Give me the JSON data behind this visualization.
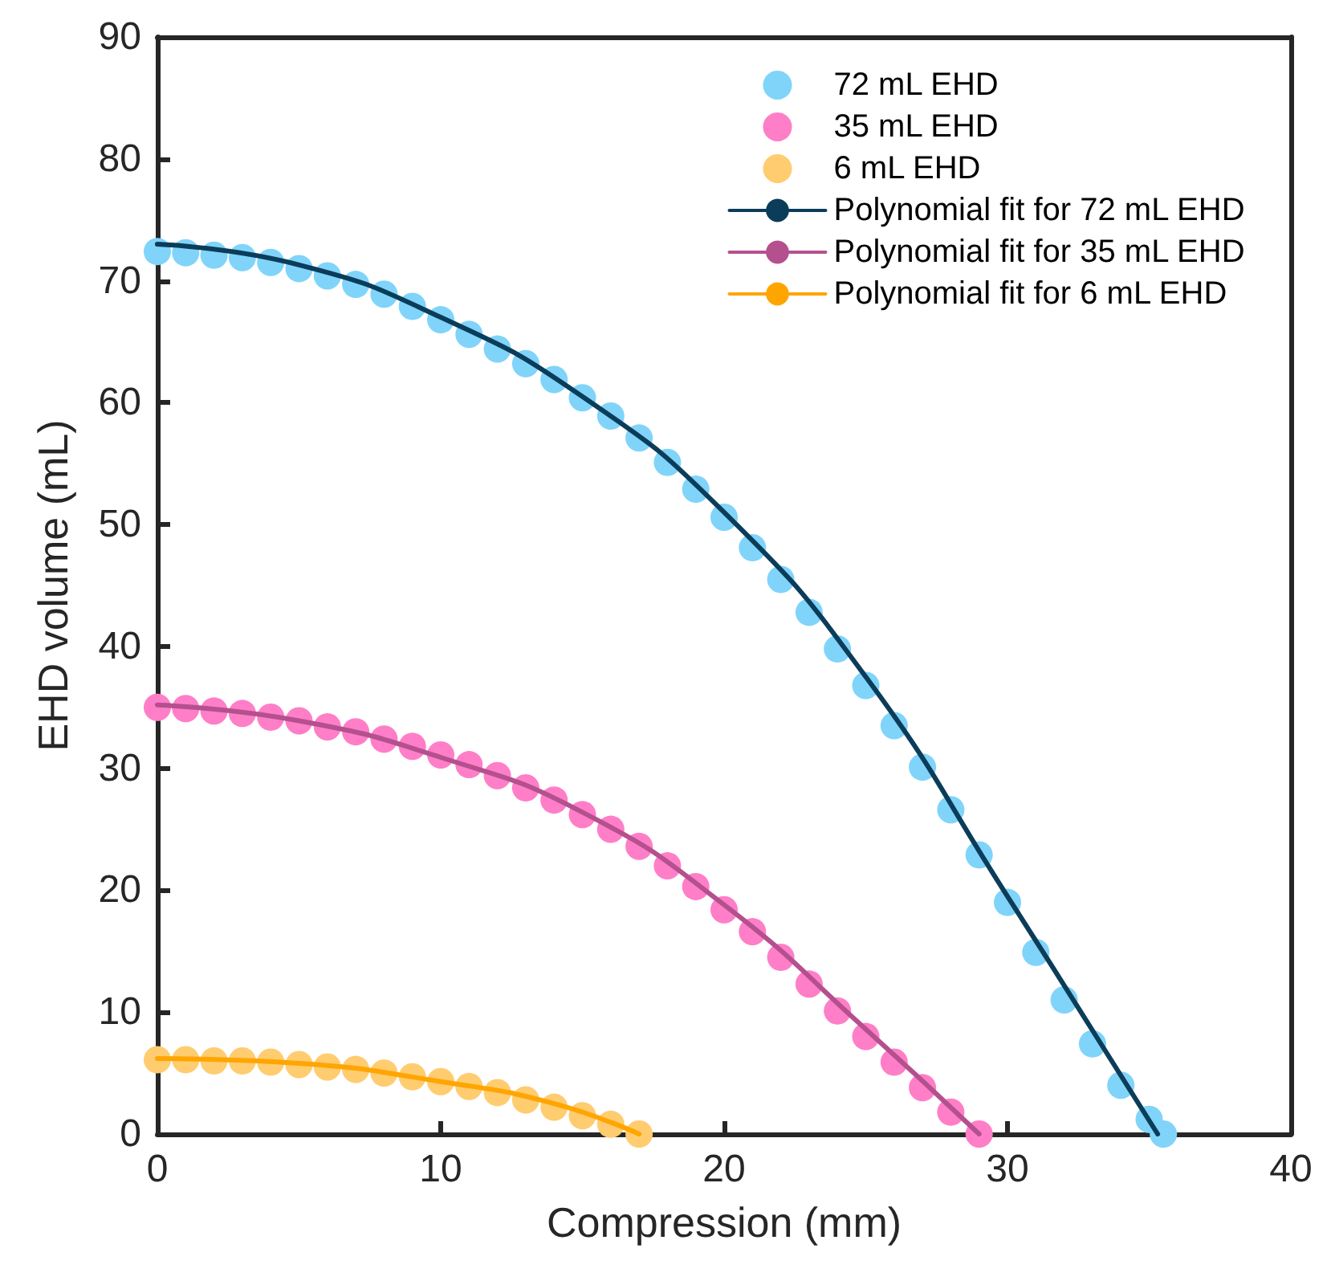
{
  "chart_data": {
    "type": "scatter",
    "xlabel": "Compression (mm)",
    "ylabel": "EHD volume (mL)",
    "xlim": [
      0,
      40
    ],
    "ylim": [
      0,
      90
    ],
    "xticks": [
      0,
      10,
      20,
      30,
      40
    ],
    "yticks": [
      0,
      10,
      20,
      30,
      40,
      50,
      60,
      70,
      80,
      90
    ],
    "grid": false,
    "legend": "top right",
    "marker": "circle",
    "series": [
      {
        "name": "72 mL EHD",
        "color": "#80d4fa",
        "x": [
          0,
          1,
          2,
          3,
          4,
          5,
          6,
          7,
          8,
          9,
          10,
          11,
          12,
          13,
          14,
          15,
          16,
          17,
          18,
          19,
          20,
          21,
          22,
          23,
          24,
          25,
          26,
          27,
          28,
          29,
          30,
          31,
          32,
          33,
          34,
          35,
          35.5
        ],
        "values": [
          72.4,
          72.3,
          72.1,
          71.9,
          71.5,
          71.0,
          70.4,
          69.7,
          68.9,
          67.9,
          66.8,
          65.6,
          64.4,
          63.2,
          61.9,
          60.4,
          58.9,
          57.1,
          55.1,
          52.9,
          50.6,
          48.1,
          45.5,
          42.8,
          39.8,
          36.8,
          33.5,
          30.1,
          26.6,
          22.9,
          19.0,
          14.9,
          11.0,
          7.4,
          4.0,
          1.2,
          0
        ]
      },
      {
        "name": "35 mL EHD",
        "color": "#ff7ec8",
        "x": [
          0,
          1,
          2,
          3,
          4,
          5,
          6,
          7,
          8,
          9,
          10,
          11,
          12,
          13,
          14,
          15,
          16,
          17,
          18,
          19,
          20,
          21,
          22,
          23,
          24,
          25,
          26,
          27,
          28,
          29
        ],
        "values": [
          35.0,
          34.9,
          34.7,
          34.5,
          34.2,
          33.9,
          33.4,
          33.0,
          32.4,
          31.8,
          31.1,
          30.3,
          29.4,
          28.4,
          27.4,
          26.2,
          25.0,
          23.6,
          22.0,
          20.3,
          18.4,
          16.6,
          14.5,
          12.3,
          10.1,
          8.0,
          5.9,
          3.8,
          1.8,
          0
        ]
      },
      {
        "name": "6 mL EHD",
        "color": "#ffcc70",
        "x": [
          0,
          1,
          2,
          3,
          4,
          5,
          6,
          7,
          8,
          9,
          10,
          11,
          12,
          13,
          14,
          15,
          16,
          17
        ],
        "values": [
          6.1,
          6.1,
          6.0,
          6.0,
          5.9,
          5.7,
          5.5,
          5.3,
          5.0,
          4.7,
          4.3,
          3.9,
          3.4,
          2.8,
          2.2,
          1.5,
          0.8,
          0
        ]
      },
      {
        "name": "Polynomial fit for 72 mL EHD",
        "type": "line",
        "marker": "none",
        "line_style": "solid",
        "color": "#0b3d5a",
        "x": [
          0,
          5,
          10,
          15,
          20,
          25,
          30,
          33,
          35.3
        ],
        "values": [
          73.0,
          71.3,
          67.0,
          60.5,
          51.0,
          37.5,
          19.5,
          8.5,
          0
        ]
      },
      {
        "name": "Polynomial fit for 35 mL EHD",
        "type": "line",
        "marker": "none",
        "line_style": "solid",
        "color": "#b5508f",
        "x": [
          0,
          5,
          10,
          15,
          20,
          25,
          29
        ],
        "values": [
          35.2,
          33.9,
          30.9,
          26.4,
          18.8,
          8.6,
          0
        ]
      },
      {
        "name": "Polynomial fit for 6 mL EHD",
        "type": "line",
        "marker": "none",
        "line_style": "solid",
        "color": "#ffa500",
        "x": [
          0,
          5,
          10,
          14,
          17
        ],
        "values": [
          6.2,
          5.8,
          4.3,
          2.5,
          0
        ]
      }
    ]
  }
}
